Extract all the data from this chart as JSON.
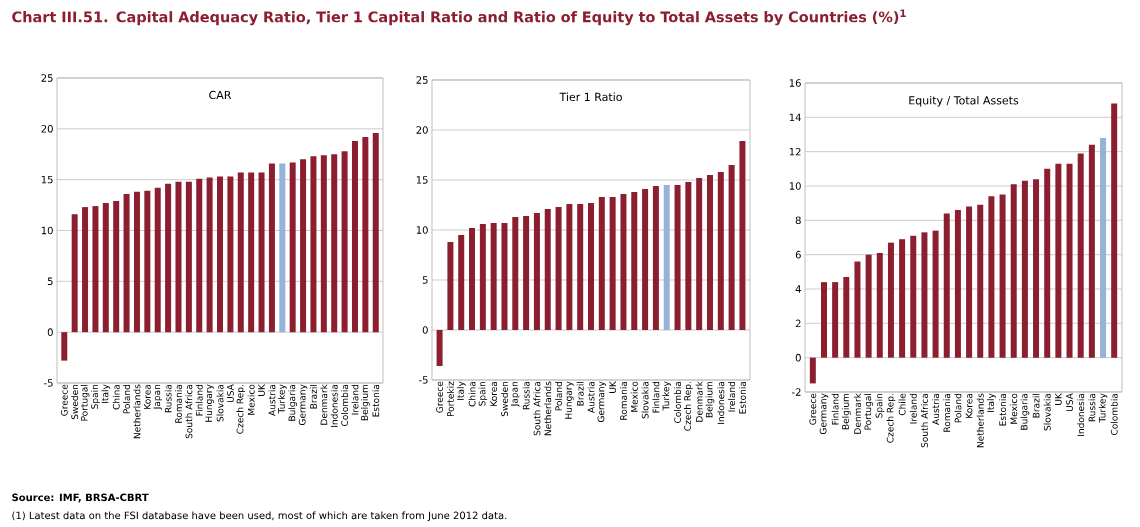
{
  "chart_data": [
    {
      "type": "bar",
      "title": "Chart III.51. Capital Adequacy Ratio, Tier 1 Capital Ratio and Ratio of Equity to Total Assets by Countries (%)$^{1}$",
      "subtitle": "CAR",
      "annotations": [
        "Source: IMF, BRSA-CBRT",
        "(1) Latest data on the FSI database have been used, most of which are taken from June 2012 data."
      ],
      "categories": [
        "Greece",
        "Sweden",
        "Portugal",
        "Spain",
        "Italy",
        "China",
        "Poland",
        "Netherlands",
        "Korea",
        "Japan",
        "Russia",
        "Romania",
        "South Africa",
        "Finland",
        "Hungary",
        "Slovakia",
        "USA",
        "Czech Rep.",
        "Mexico",
        "UK",
        "Austria",
        "Turkey",
        "Bulgaria",
        "Germany",
        "Brazil",
        "Denmark",
        "Indonesia",
        "Colombia",
        "Ireland",
        "Belgium",
        "Estonia"
      ],
      "values": [
        -2.8,
        11.6,
        12.3,
        12.4,
        12.7,
        12.9,
        13.6,
        13.8,
        13.9,
        14.2,
        14.6,
        14.8,
        14.8,
        15.1,
        15.2,
        15.3,
        15.3,
        15.7,
        15.7,
        15.7,
        16.6,
        16.6,
        16.7,
        17.0,
        17.3,
        17.4,
        17.5,
        17.8,
        18.8,
        19.2,
        19.6
      ],
      "colors": [
        "#8b1e2f",
        "#8b1e2f",
        "#8b1e2f",
        "#8b1e2f",
        "#8b1e2f",
        "#8b1e2f",
        "#8b1e2f",
        "#8b1e2f",
        "#8b1e2f",
        "#8b1e2f",
        "#8b1e2f",
        "#8b1e2f",
        "#8b1e2f",
        "#8b1e2f",
        "#8b1e2f",
        "#8b1e2f",
        "#8b1e2f",
        "#8b1e2f",
        "#8b1e2f",
        "#8b1e2f",
        "#8b1e2f",
        "#95b3d7",
        "#8b1e2f",
        "#8b1e2f",
        "#8b1e2f",
        "#8b1e2f",
        "#8b1e2f",
        "#8b1e2f",
        "#8b1e2f",
        "#8b1e2f",
        "#8b1e2f"
      ],
      "ylim": [
        -5,
        25
      ],
      "yticks": [
        -5,
        0,
        5,
        10,
        15,
        20,
        25
      ],
      "grid": "y"
    },
    {
      "type": "bar",
      "subtitle": "Tier 1 Ratio",
      "categories": [
        "Greece",
        "Portekiz",
        "Italy",
        "China",
        "Spain",
        "Korea",
        "Sweden",
        "Japan",
        "Russia",
        "South Africa",
        "Netherlands",
        "Poland",
        "Hungary",
        "Brazil",
        "Austria",
        "Germany",
        "UK",
        "Romania",
        "Mexico",
        "Slovakia",
        "Finland",
        "Turkey",
        "Colombia",
        "Czech Rep.",
        "Denmark",
        "Belgium",
        "Indonesia",
        "Ireland",
        "Estonia"
      ],
      "values": [
        -3.6,
        8.8,
        9.5,
        10.2,
        10.6,
        10.7,
        10.7,
        11.3,
        11.4,
        11.7,
        12.1,
        12.3,
        12.6,
        12.6,
        12.7,
        13.3,
        13.3,
        13.6,
        13.8,
        14.1,
        14.4,
        14.5,
        14.5,
        14.8,
        15.2,
        15.5,
        15.8,
        16.5,
        18.9
      ],
      "colors": [
        "#8b1e2f",
        "#8b1e2f",
        "#8b1e2f",
        "#8b1e2f",
        "#8b1e2f",
        "#8b1e2f",
        "#8b1e2f",
        "#8b1e2f",
        "#8b1e2f",
        "#8b1e2f",
        "#8b1e2f",
        "#8b1e2f",
        "#8b1e2f",
        "#8b1e2f",
        "#8b1e2f",
        "#8b1e2f",
        "#8b1e2f",
        "#8b1e2f",
        "#8b1e2f",
        "#8b1e2f",
        "#8b1e2f",
        "#95b3d7",
        "#8b1e2f",
        "#8b1e2f",
        "#8b1e2f",
        "#8b1e2f",
        "#8b1e2f",
        "#8b1e2f",
        "#8b1e2f"
      ],
      "ylim": [
        -5,
        25
      ],
      "yticks": [
        -5,
        0,
        5,
        10,
        15,
        20,
        25
      ],
      "grid": "y"
    },
    {
      "type": "bar",
      "subtitle": "Equity / Total Assets",
      "categories": [
        "Greece",
        "Germany",
        "Finland",
        "Belgium",
        "Denmark",
        "Portugal",
        "Spain",
        "Czech Rep.",
        "Chile",
        "Ireland",
        "South Africa",
        "Austria",
        "Romania",
        "Poland",
        "Korea",
        "Netherlands",
        "Italy",
        "Estonia",
        "Mexico",
        "Bulgaria",
        "Brazil",
        "Slovakia",
        "UK",
        "USA",
        "Indonesia",
        "Russia",
        "Turkey",
        "Colombia"
      ],
      "values": [
        -1.5,
        4.4,
        4.4,
        4.7,
        5.6,
        6.0,
        6.1,
        6.7,
        6.9,
        7.1,
        7.3,
        7.4,
        8.4,
        8.6,
        8.8,
        8.9,
        9.4,
        9.5,
        10.1,
        10.3,
        10.4,
        11.0,
        11.3,
        11.3,
        11.9,
        12.4,
        12.8,
        14.8
      ],
      "colors": [
        "#8b1e2f",
        "#8b1e2f",
        "#8b1e2f",
        "#8b1e2f",
        "#8b1e2f",
        "#8b1e2f",
        "#8b1e2f",
        "#8b1e2f",
        "#8b1e2f",
        "#8b1e2f",
        "#8b1e2f",
        "#8b1e2f",
        "#8b1e2f",
        "#8b1e2f",
        "#8b1e2f",
        "#8b1e2f",
        "#8b1e2f",
        "#8b1e2f",
        "#8b1e2f",
        "#8b1e2f",
        "#8b1e2f",
        "#8b1e2f",
        "#8b1e2f",
        "#8b1e2f",
        "#8b1e2f",
        "#8b1e2f",
        "#95b3d7",
        "#8b1e2f"
      ],
      "ylim": [
        -2,
        16
      ],
      "yticks": [
        -2,
        0,
        2,
        4,
        6,
        8,
        10,
        12,
        14,
        16
      ],
      "grid": "y"
    }
  ]
}
